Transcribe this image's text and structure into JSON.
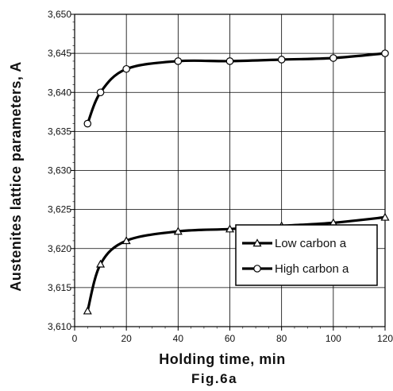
{
  "chart_data": {
    "type": "line",
    "xlabel": "Holding time, min",
    "ylabel": "Austenites lattice parameters, A",
    "caption": "Fig.6a",
    "xlim": [
      0,
      120
    ],
    "ylim": [
      3.61,
      3.65
    ],
    "x_ticks": [
      0,
      20,
      40,
      60,
      80,
      100,
      120
    ],
    "x_tick_labels": [
      "0",
      "20",
      "40",
      "60",
      "80",
      "100",
      "120"
    ],
    "y_ticks": [
      3.61,
      3.615,
      3.62,
      3.625,
      3.63,
      3.635,
      3.64,
      3.645,
      3.65
    ],
    "y_tick_labels": [
      "3,610",
      "3,615",
      "3,620",
      "3,625",
      "3,630",
      "3,635",
      "3,640",
      "3,645",
      "3,650"
    ],
    "grid": true,
    "legend_position": "lower-right",
    "series": [
      {
        "name": "Low carbon a",
        "marker": "triangle",
        "color": "#000000",
        "x": [
          5,
          10,
          20,
          40,
          60,
          80,
          100,
          120
        ],
        "y": [
          3.612,
          3.618,
          3.621,
          3.6222,
          3.6225,
          3.6229,
          3.6233,
          3.624
        ]
      },
      {
        "name": "High carbon a",
        "marker": "circle",
        "color": "#000000",
        "x": [
          5,
          10,
          20,
          40,
          60,
          80,
          100,
          120
        ],
        "y": [
          3.636,
          3.64,
          3.643,
          3.644,
          3.644,
          3.6442,
          3.6444,
          3.645
        ]
      }
    ]
  }
}
